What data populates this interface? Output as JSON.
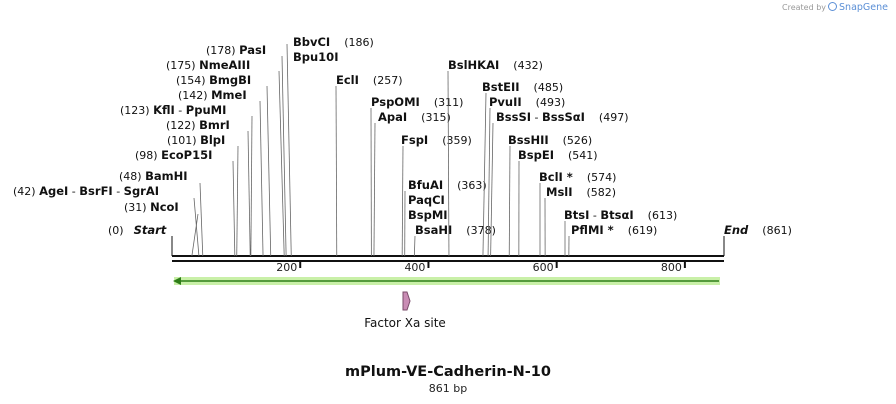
{
  "credit": {
    "text": "Created by",
    "brand": "SnapGene"
  },
  "map": {
    "title": "mPlum-VE-Cadherin-N-10",
    "length_label": "861 bp",
    "length": 861,
    "ticks": [
      "200",
      "400",
      "600",
      "800"
    ],
    "end_labels": [
      {
        "name": "Start",
        "pos": "(0)"
      },
      {
        "name": "End",
        "pos": "(861)"
      }
    ],
    "feature": {
      "name": "Factor Xa site"
    },
    "arrow_color": "#9be063",
    "sites": [
      {
        "names": [
          "NcoI"
        ],
        "pos": "(31)",
        "bp": 31
      },
      {
        "names": [
          "AgeI",
          "BsrFI",
          "SgrAI"
        ],
        "pos": "(42)",
        "bp": 42
      },
      {
        "names": [
          "BamHI"
        ],
        "pos": "(48)",
        "bp": 48
      },
      {
        "names": [
          "EcoP15I"
        ],
        "pos": "(98)",
        "bp": 98
      },
      {
        "names": [
          "BlpI"
        ],
        "pos": "(101)",
        "bp": 101
      },
      {
        "names": [
          "BmrI"
        ],
        "pos": "(122)",
        "bp": 122
      },
      {
        "names": [
          "KflI",
          "PpuMI"
        ],
        "pos": "(123)",
        "bp": 123
      },
      {
        "names": [
          "MmeI"
        ],
        "pos": "(142)",
        "bp": 142
      },
      {
        "names": [
          "BmgBI"
        ],
        "pos": "(154)",
        "bp": 154
      },
      {
        "names": [
          "NmeAIII"
        ],
        "pos": "(175)",
        "bp": 175
      },
      {
        "names": [
          "PasI"
        ],
        "pos": "(178)",
        "bp": 178
      },
      {
        "names": [
          "BbvCI"
        ],
        "pos": "(186)",
        "bp": 186
      },
      {
        "names": [
          "Bpu10I"
        ],
        "pos": "",
        "bp": 186
      },
      {
        "names": [
          "EclI"
        ],
        "pos": "(257)",
        "bp": 257
      },
      {
        "names": [
          "PspOMI"
        ],
        "pos": "(311)",
        "bp": 311
      },
      {
        "names": [
          "ApaI"
        ],
        "pos": "(315)",
        "bp": 315
      },
      {
        "names": [
          "FspI"
        ],
        "pos": "(359)",
        "bp": 359
      },
      {
        "names": [
          "BfuAI"
        ],
        "pos": "(363)",
        "bp": 363
      },
      {
        "names": [
          "PaqCI"
        ],
        "pos": "",
        "bp": 363
      },
      {
        "names": [
          "BspMI"
        ],
        "pos": "",
        "bp": 363
      },
      {
        "names": [
          "BsaHI"
        ],
        "pos": "(378)",
        "bp": 378
      },
      {
        "names": [
          "BslHKAI"
        ],
        "pos": "(432)",
        "bp": 432
      },
      {
        "names": [
          "BstEII"
        ],
        "pos": "(485)",
        "bp": 485
      },
      {
        "names": [
          "PvuII"
        ],
        "pos": "(493)",
        "bp": 493
      },
      {
        "names": [
          "BssSI",
          "BssSαI"
        ],
        "pos": "(497)",
        "bp": 497
      },
      {
        "names": [
          "BssHII"
        ],
        "pos": "(526)",
        "bp": 526
      },
      {
        "names": [
          "BspEI"
        ],
        "pos": "(541)",
        "bp": 541
      },
      {
        "names": [
          "BclI *"
        ],
        "pos": "(574)",
        "bp": 574
      },
      {
        "names": [
          "MslI"
        ],
        "pos": "(582)",
        "bp": 582
      },
      {
        "names": [
          "BtsI",
          "BtsαI"
        ],
        "pos": "(613)",
        "bp": 613
      },
      {
        "names": [
          "PflMI *"
        ],
        "pos": "(619)",
        "bp": 619
      }
    ]
  }
}
